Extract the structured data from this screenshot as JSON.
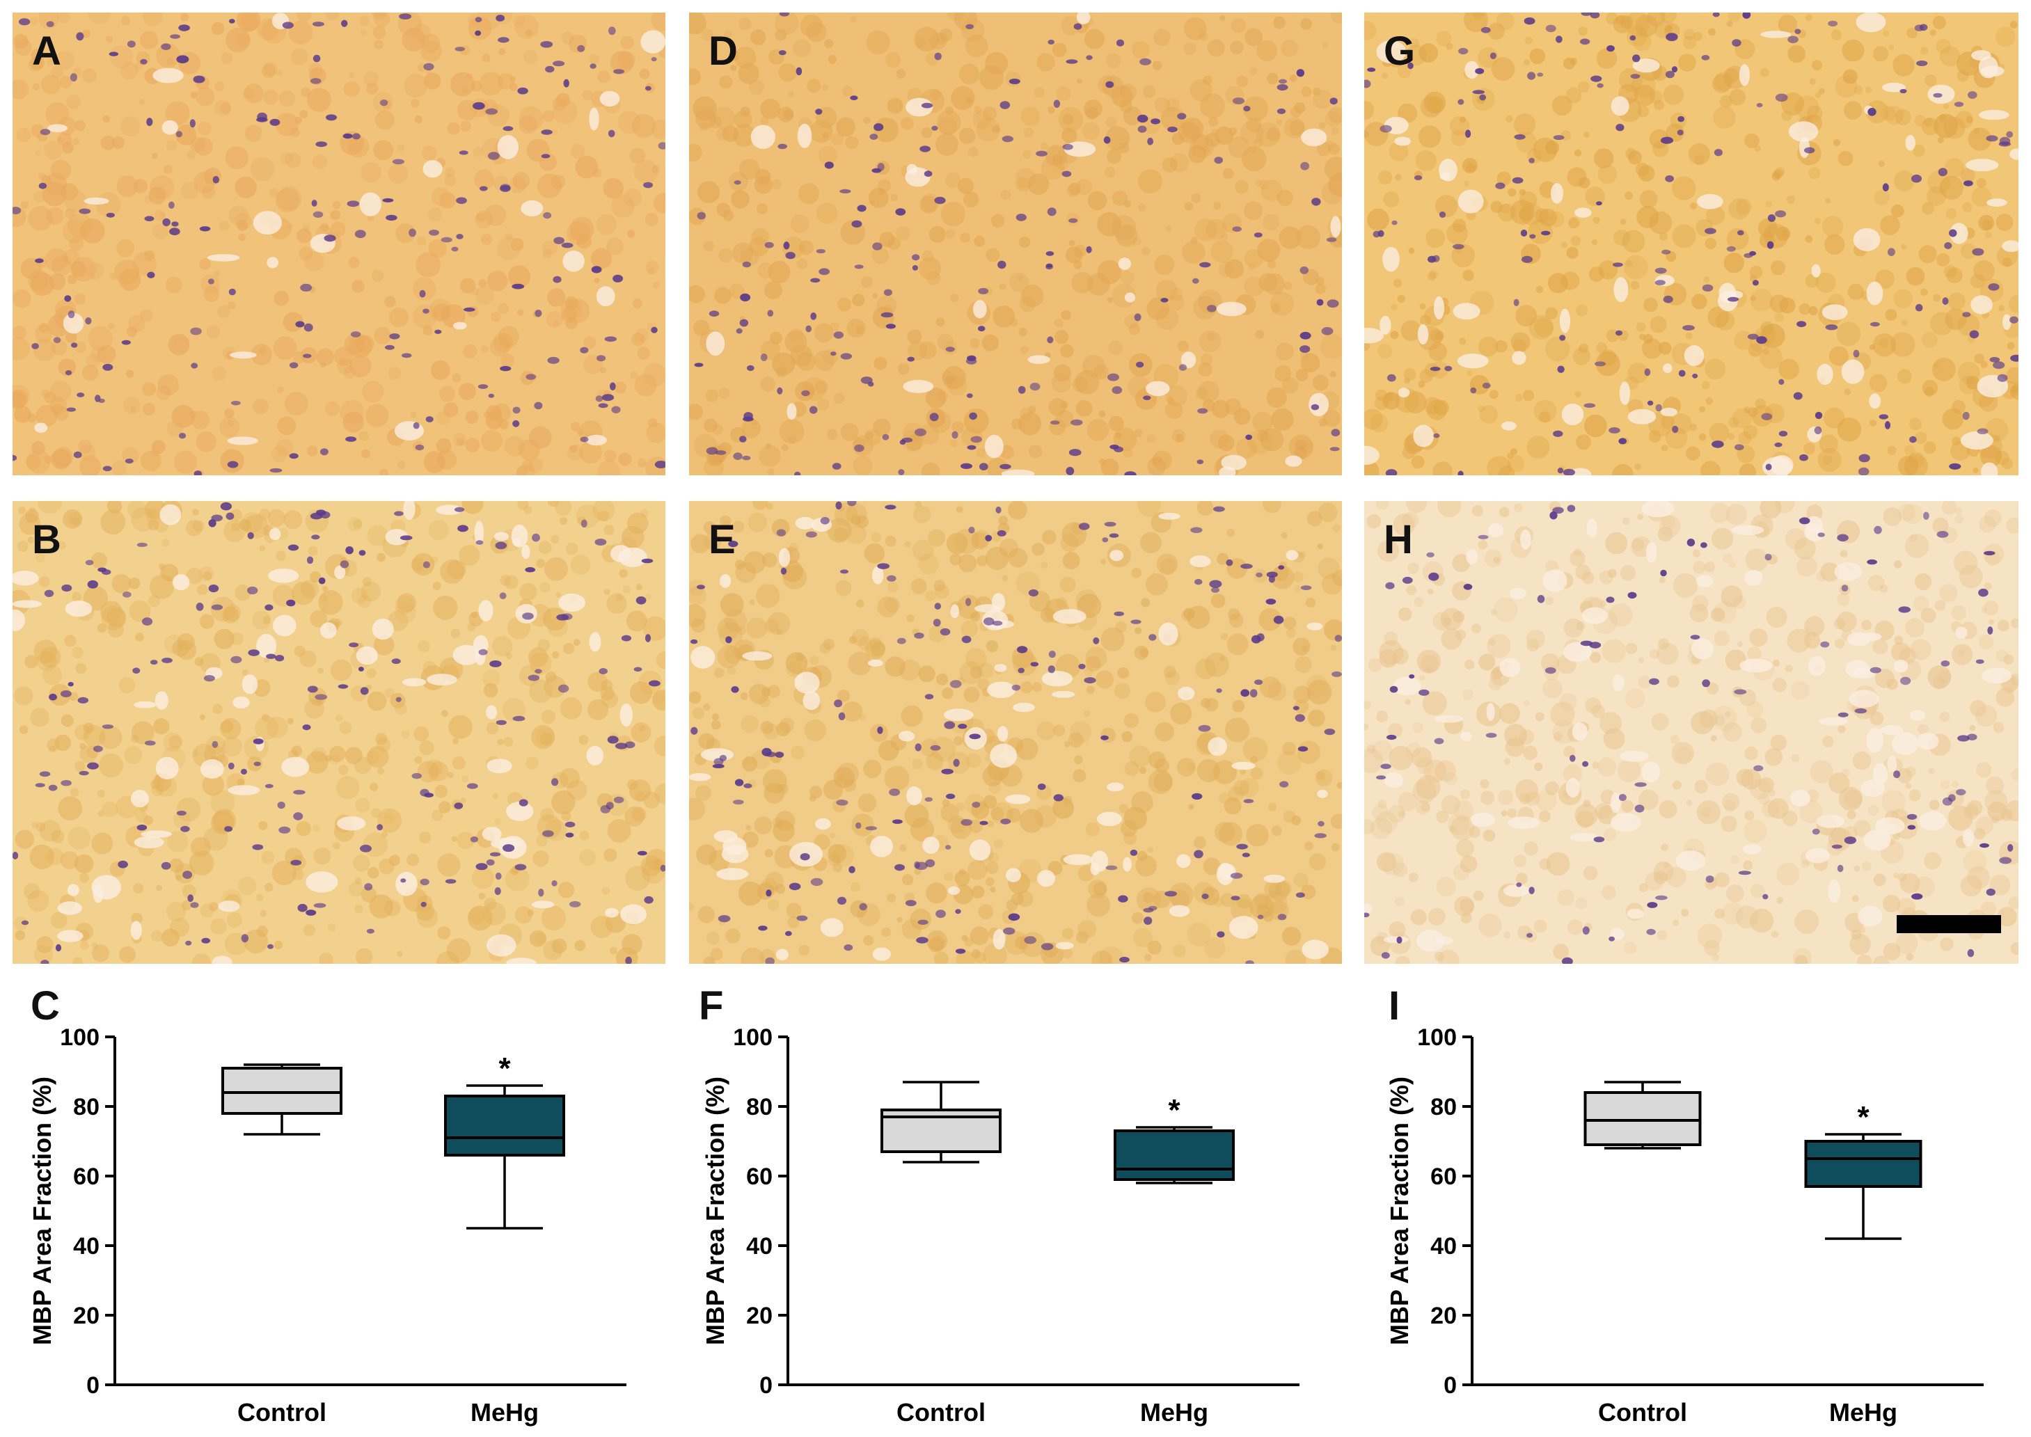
{
  "micrographs": [
    {
      "letter": "A",
      "stain": "#f0c27a",
      "tone": "#e9a95c"
    },
    {
      "letter": "D",
      "stain": "#eebf74",
      "tone": "#e2a553"
    },
    {
      "letter": "G",
      "stain": "#f1c676",
      "tone": "#dfa446"
    },
    {
      "letter": "B",
      "stain": "#f2d18f",
      "tone": "#e3b05a"
    },
    {
      "letter": "E",
      "stain": "#f0cc88",
      "tone": "#e0ac57"
    },
    {
      "letter": "H",
      "stain": "#f6e3c4",
      "tone": "#e9c48e"
    }
  ],
  "colors": {
    "control": "#d9d9d9",
    "mehg": "#0f4c5c",
    "nucleus": "#5a3a8a",
    "vacuole": "#fbeee0"
  },
  "chart_data": [
    {
      "type": "box",
      "panel": "C",
      "ylabel": "MBP Area Fraction (%)",
      "ylim": [
        0,
        100
      ],
      "yticks": [
        "0",
        "20",
        "40",
        "60",
        "80",
        "100"
      ],
      "categories": [
        "Control",
        "MeHg"
      ],
      "boxes": [
        {
          "min": 72,
          "q1": 78,
          "median": 84,
          "q3": 91,
          "max": 92,
          "significant": ""
        },
        {
          "min": 45,
          "q1": 66,
          "median": 71,
          "q3": 83,
          "max": 86,
          "significant": "*"
        }
      ]
    },
    {
      "type": "box",
      "panel": "F",
      "ylabel": "MBP Area Fraction (%)",
      "ylim": [
        0,
        100
      ],
      "yticks": [
        "0",
        "20",
        "40",
        "60",
        "80",
        "100"
      ],
      "categories": [
        "Control",
        "MeHg"
      ],
      "boxes": [
        {
          "min": 64,
          "q1": 67,
          "median": 77,
          "q3": 79,
          "max": 87,
          "significant": ""
        },
        {
          "min": 58,
          "q1": 59,
          "median": 62,
          "q3": 73,
          "max": 74,
          "significant": "*"
        }
      ]
    },
    {
      "type": "box",
      "panel": "I",
      "ylabel": "MBP Area Fraction (%)",
      "ylim": [
        0,
        100
      ],
      "yticks": [
        "0",
        "20",
        "40",
        "60",
        "80",
        "100"
      ],
      "categories": [
        "Control",
        "MeHg"
      ],
      "boxes": [
        {
          "min": 68,
          "q1": 69,
          "median": 76,
          "q3": 84,
          "max": 87,
          "significant": ""
        },
        {
          "min": 42,
          "q1": 57,
          "median": 65,
          "q3": 70,
          "max": 72,
          "significant": "*"
        }
      ]
    }
  ]
}
